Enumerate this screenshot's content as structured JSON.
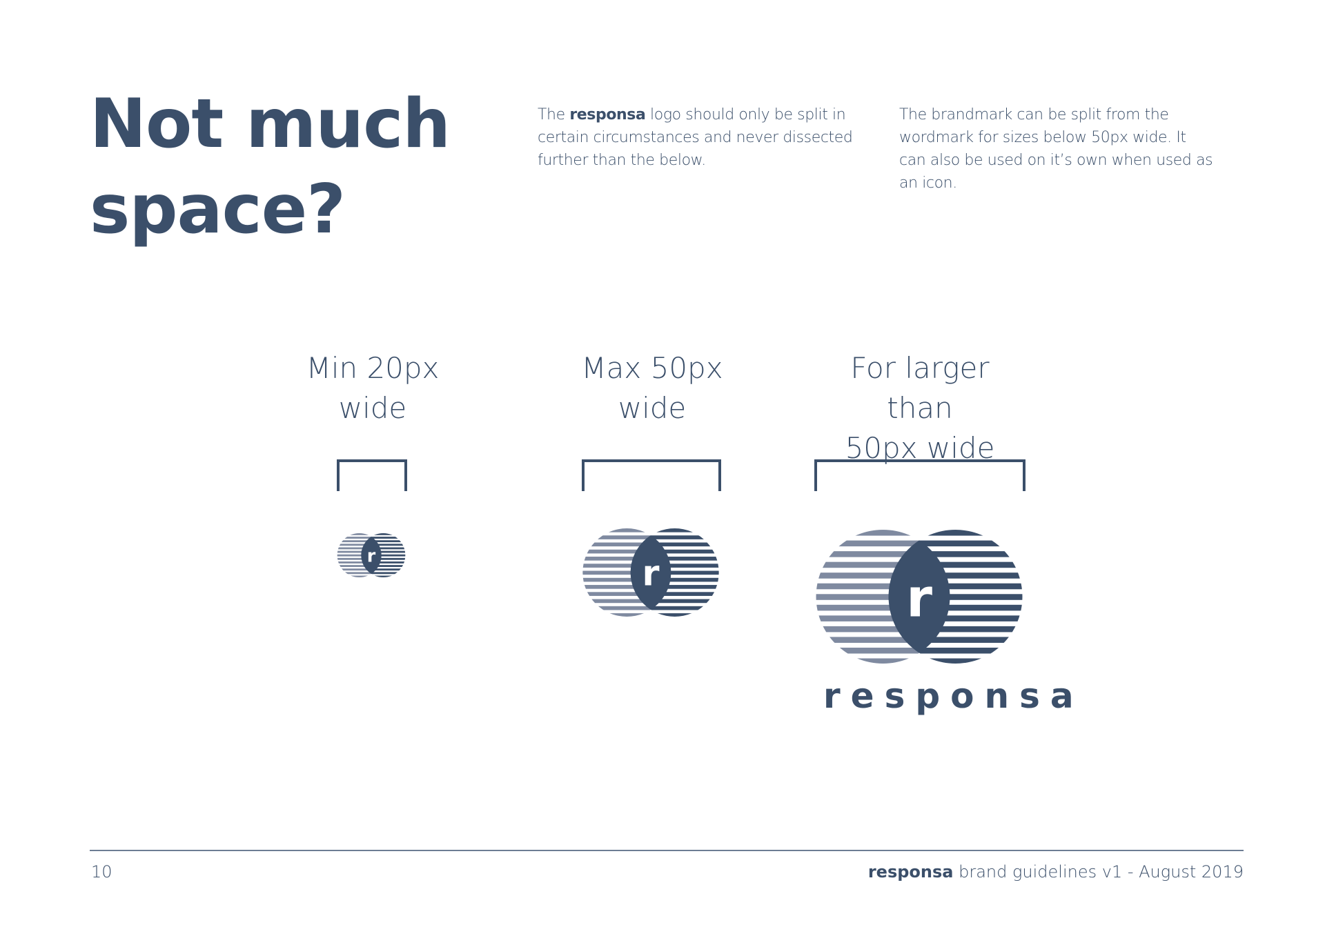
{
  "title": {
    "line1": "Not much",
    "line2": "space?"
  },
  "intro_left": {
    "before": "The",
    "brand": "responsa",
    "after": "logo should only be split in certain circumstances and never dissected further than the below."
  },
  "intro_right": "The brandmark can be split from the wordmark for sizes below 50px wide. It can also be used on it’s own when used as an icon.",
  "sizes": [
    {
      "line1": "Min 20px",
      "line2": "wide"
    },
    {
      "line1": "Max 50px",
      "line2": "wide"
    },
    {
      "line1": "For larger than",
      "line2": "50px wide"
    }
  ],
  "logo": {
    "letter": "r",
    "wordmark": "responsa",
    "primary_color": "#3b4f6a",
    "secondary_color": "#7f8aa0"
  },
  "footer": {
    "page_number": "10",
    "brand": "responsa",
    "text": "brand guidelines v1 - August 2019"
  }
}
